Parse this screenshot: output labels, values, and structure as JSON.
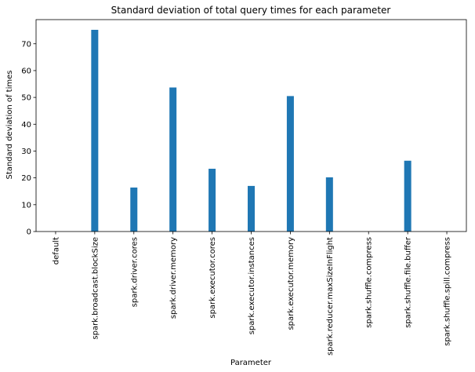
{
  "chart_data": {
    "type": "bar",
    "title": "Standard deviation of total query times for each parameter",
    "xlabel": "Parameter",
    "ylabel": "Standard deviation of times",
    "categories": [
      "default",
      "spark.broadcast.blockSize",
      "spark.driver.cores",
      "spark.driver.memory",
      "spark.executor.cores",
      "spark.executor.instances",
      "spark.executor.memory",
      "spark.reducer.maxSizeInFlight",
      "spark.shuffle.compress",
      "spark.shuffle.file.buffer",
      "spark.shuffle.spill.compress"
    ],
    "values": [
      0,
      75.2,
      16.4,
      53.7,
      23.4,
      17.0,
      50.5,
      20.2,
      0,
      26.4,
      0
    ],
    "ylim": [
      0,
      79
    ],
    "yticks": [
      0,
      10,
      20,
      30,
      40,
      50,
      60,
      70
    ],
    "grid": false,
    "bar_color": "#1f77b4"
  }
}
